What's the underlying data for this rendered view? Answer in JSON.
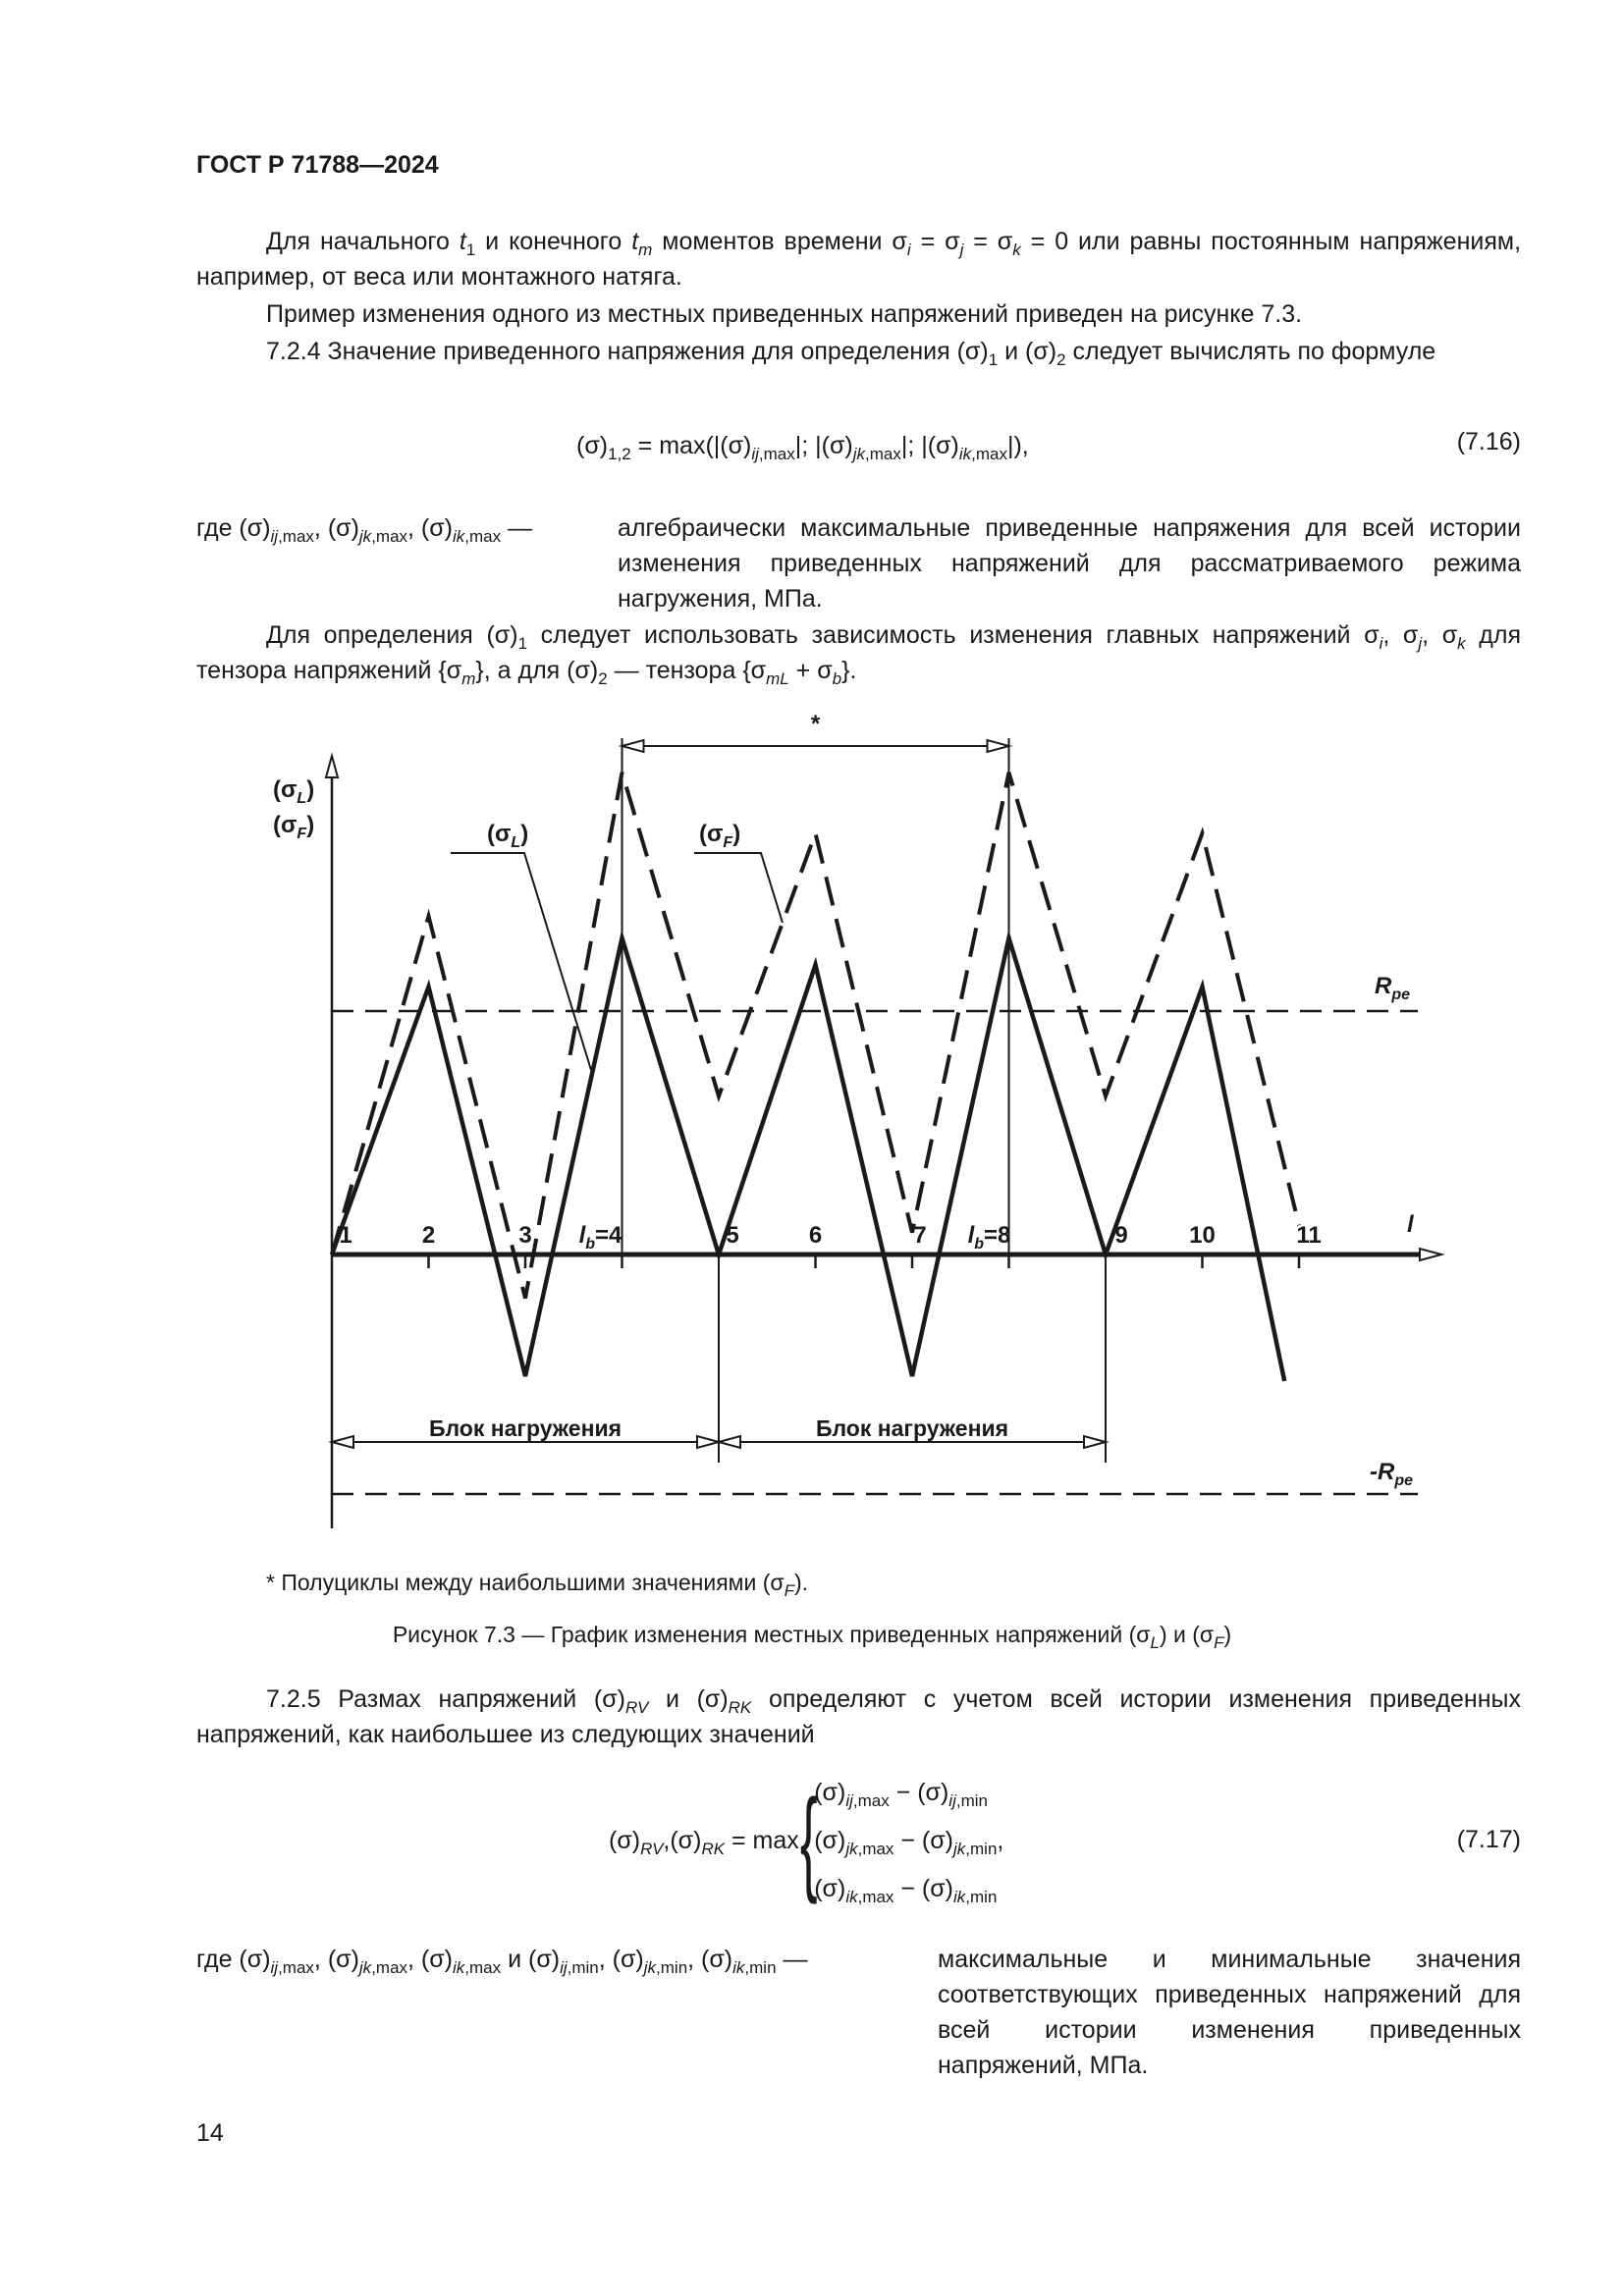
{
  "header": "ГОСТ Р 71788—2024",
  "page_number": "14",
  "paragraphs": {
    "p1": [
      "Для начального ",
      {
        "i": "t"
      },
      {
        "s": "1"
      },
      " и конечного ",
      {
        "i": "t"
      },
      {
        "is": "m"
      },
      " моментов времени σ",
      {
        "is": "i"
      },
      " = σ",
      {
        "is": "j"
      },
      " = σ",
      {
        "is": "k"
      },
      " = 0 или равны постоянным напряжениям, например, от веса или монтажного натяга."
    ],
    "p2": [
      "Пример изменения одного из местных приведенных напряжений приведен на рисунке 7.3."
    ],
    "p3": [
      "7.2.4  Значение приведенного напряжения для определения (σ)",
      {
        "s": "1"
      },
      " и (σ)",
      {
        "s": "2"
      },
      " следует вычислять по формуле"
    ],
    "where1_left": [
      "где (σ)",
      {
        "is": "ij"
      },
      {
        "s": ",max"
      },
      ", (σ)",
      {
        "is": "jk"
      },
      {
        "s": ",max"
      },
      ", (σ)",
      {
        "is": "ik"
      },
      {
        "s": ",max"
      },
      " —"
    ],
    "where1_right": [
      "алгебраически максимальные приведенные напряжения для всей истории изменения приведенных напряжений для рассматриваемого режима нагружения, МПа."
    ],
    "p4": [
      "Для определения (σ)",
      {
        "s": "1"
      },
      " следует использовать зависимость изменения главных напряжений σ",
      {
        "is": "i"
      },
      ", σ",
      {
        "is": "j"
      },
      ", σ",
      {
        "is": "k"
      },
      " для тензора напряжений {σ",
      {
        "is": "m"
      },
      "}, а для (σ)",
      {
        "s": "2"
      },
      " — тензора {σ",
      {
        "is": "mL"
      },
      " + σ",
      {
        "is": "b"
      },
      "}."
    ],
    "footnote": [
      "* Полуциклы между наибольшими значениями (σ",
      {
        "is": "F"
      },
      ")."
    ],
    "caption": [
      "Рисунок 7.3 — График изменения местных приведенных напряжений (σ",
      {
        "is": "L"
      },
      ") и (σ",
      {
        "is": "F"
      },
      ")"
    ],
    "p5": [
      "7.2.5  Размах напряжений (σ)",
      {
        "is": "RV"
      },
      " и (σ)",
      {
        "is": "RK"
      },
      " определяют с учетом всей истории изменения приведенных напряжений, как наибольшее из следующих значений"
    ],
    "where2_left": [
      "где (σ)",
      {
        "is": "ij"
      },
      {
        "s": ",max"
      },
      ", (σ)",
      {
        "is": "jk"
      },
      {
        "s": ",max"
      },
      ", (σ)",
      {
        "is": "ik"
      },
      {
        "s": ",max"
      },
      " и (σ)",
      {
        "is": "ij"
      },
      {
        "s": ",min"
      },
      ", (σ)",
      {
        "is": "jk"
      },
      {
        "s": ",min"
      },
      ", (σ)",
      {
        "is": "ik"
      },
      {
        "s": ",min"
      },
      " —"
    ],
    "where2_right": [
      "максимальные и минимальные значения соответствующих приведенных напряжений для всей истории изменения приведенных напряжений, МПа."
    ]
  },
  "formula_716": {
    "body": [
      "(σ)",
      {
        "s": "1,2"
      },
      " = max(|(σ)",
      {
        "is": "ij"
      },
      {
        "s": ",max"
      },
      "|;  |(σ)",
      {
        "is": "jk"
      },
      {
        "s": ",max"
      },
      "|;  |(σ)",
      {
        "is": "ik"
      },
      {
        "s": ",max"
      },
      "|),"
    ],
    "number": "(7.16)"
  },
  "formula_717": {
    "left": [
      "(σ)",
      {
        "is": "RV"
      },
      ",(σ)",
      {
        "is": "RK"
      },
      " = max"
    ],
    "lines": [
      [
        "(σ)",
        {
          "is": "ij"
        },
        {
          "s": ",max"
        },
        " − (σ)",
        {
          "is": "ij"
        },
        {
          "s": ",min"
        }
      ],
      [
        "(σ)",
        {
          "is": "jk"
        },
        {
          "s": ",max"
        },
        " − (σ)",
        {
          "is": "jk"
        },
        {
          "s": ",min"
        },
        ","
      ],
      [
        "(σ)",
        {
          "is": "ik"
        },
        {
          "s": ",max"
        },
        " − (σ)",
        {
          "is": "ik"
        },
        {
          "s": ",min"
        }
      ]
    ],
    "number": "(7.17)"
  },
  "chart_data": {
    "type": "line",
    "ylabel": [
      "(σ",
      "L",
      ")",
      "(σ",
      "F",
      ")"
    ],
    "xlabel": "l",
    "tick_labels": [
      "1",
      "2",
      "3",
      "l_b=4",
      "5",
      "6",
      "7",
      "l_b=8",
      "9",
      "10",
      "11"
    ],
    "reference_lines": [
      {
        "label": "R_pe",
        "value": 1
      },
      {
        "label": "-R_pe",
        "value": -1
      }
    ],
    "series": [
      {
        "name": "(σL)",
        "style": "solid",
        "x": [
          1,
          2,
          3,
          4,
          5,
          6,
          7,
          8,
          9,
          10,
          10.85
        ],
        "y": [
          0,
          1.1,
          -0.5,
          1.3,
          0,
          1.19,
          -0.5,
          1.3,
          0,
          1.1,
          -0.52
        ]
      },
      {
        "name": "(σF)",
        "style": "dashed",
        "x": [
          1,
          2,
          3,
          4,
          5,
          6,
          7,
          8,
          9,
          10,
          11
        ],
        "y": [
          0,
          1.39,
          -0.18,
          1.98,
          0.65,
          1.73,
          0.09,
          1.98,
          0.65,
          1.73,
          0.12
        ]
      }
    ],
    "annotations": {
      "star": "*",
      "block_label": "Блок нагружения"
    },
    "grid": false,
    "color": "#1a1a1a"
  }
}
